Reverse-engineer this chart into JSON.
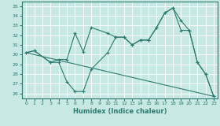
{
  "xlabel": "Humidex (Indice chaleur)",
  "bg_color": "#c8e8e4",
  "line_color": "#2d7a6e",
  "grid_color": "#ffffff",
  "xlim": [
    -0.5,
    23.5
  ],
  "ylim": [
    25.5,
    35.5
  ],
  "yticks": [
    26,
    27,
    28,
    29,
    30,
    31,
    32,
    33,
    34,
    35
  ],
  "xticks": [
    0,
    1,
    2,
    3,
    4,
    5,
    6,
    7,
    8,
    9,
    10,
    11,
    12,
    13,
    14,
    15,
    16,
    17,
    18,
    19,
    20,
    21,
    22,
    23
  ],
  "line1_zigzag": {
    "x": [
      0,
      1,
      3,
      4,
      5,
      6,
      7,
      8,
      10,
      11,
      12,
      13,
      14,
      15,
      16,
      17,
      18,
      19,
      20,
      21,
      22,
      23
    ],
    "y": [
      30.2,
      30.4,
      29.2,
      29.2,
      27.2,
      26.2,
      26.2,
      28.5,
      30.2,
      31.8,
      31.8,
      31.0,
      31.5,
      31.5,
      32.8,
      34.3,
      34.8,
      32.5,
      32.5,
      29.2,
      28.0,
      25.7
    ]
  },
  "line2_upper": {
    "x": [
      0,
      1,
      3,
      4,
      5,
      6,
      7,
      8,
      10,
      11,
      12,
      13,
      14,
      15,
      16,
      17,
      18,
      19,
      20,
      21,
      22,
      23
    ],
    "y": [
      30.2,
      30.4,
      29.2,
      29.5,
      29.5,
      32.2,
      30.3,
      32.8,
      32.2,
      31.8,
      31.8,
      31.0,
      31.5,
      31.5,
      32.8,
      34.3,
      34.8,
      33.5,
      32.5,
      29.2,
      28.0,
      25.7
    ]
  },
  "line3_straight": {
    "x": [
      0,
      23
    ],
    "y": [
      30.2,
      25.7
    ]
  }
}
